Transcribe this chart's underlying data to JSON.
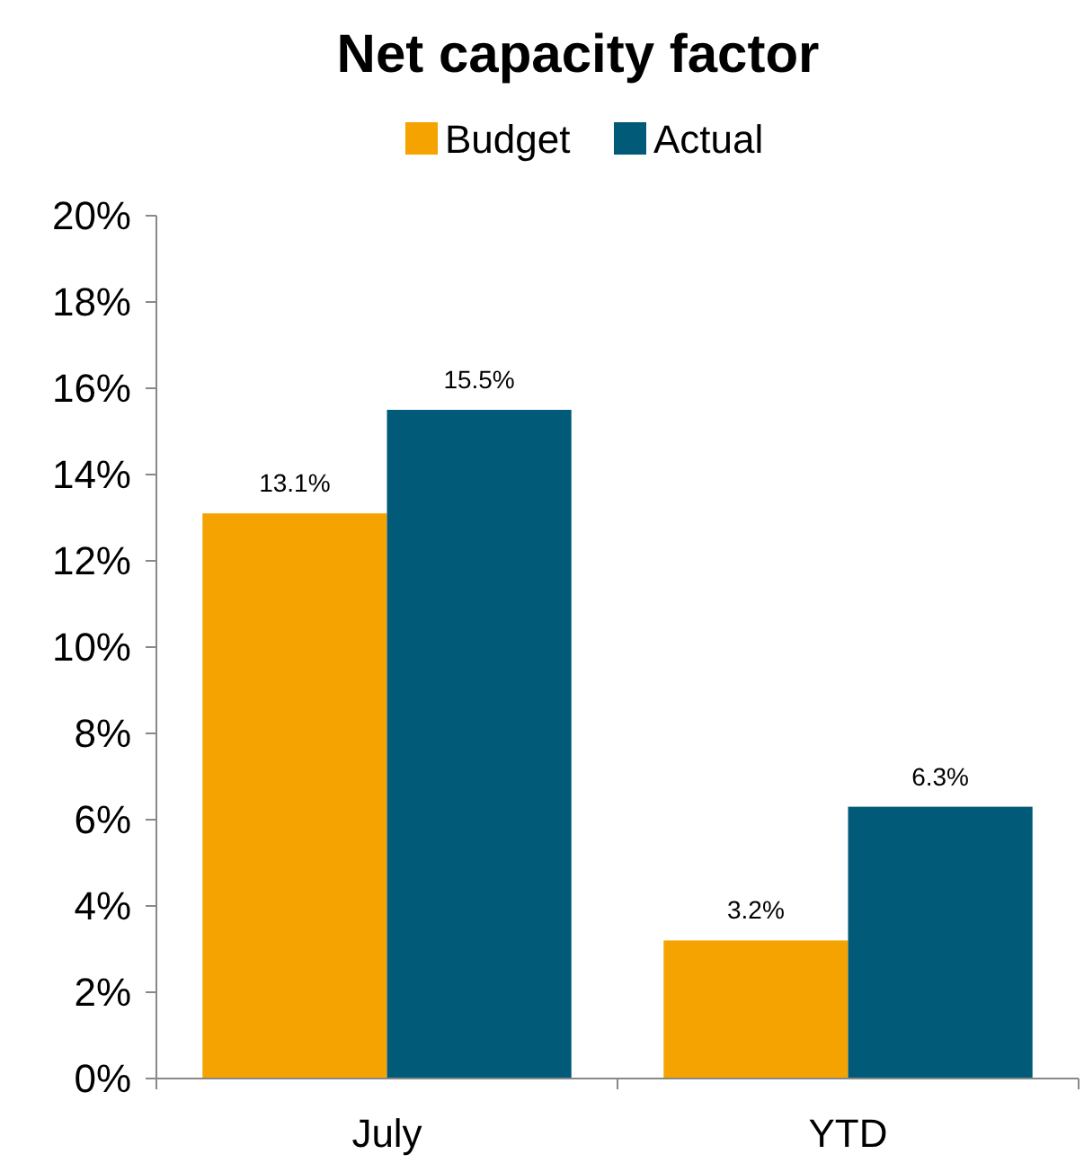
{
  "chart_data": {
    "type": "bar",
    "title": "Net capacity factor",
    "categories": [
      "July",
      "YTD"
    ],
    "series": [
      {
        "name": "Budget",
        "color": "#f5a300",
        "values": [
          13.1,
          3.2
        ],
        "value_labels": [
          "13.1%",
          "3.2%"
        ]
      },
      {
        "name": "Actual",
        "color": "#005a78",
        "values": [
          15.5,
          6.3
        ],
        "value_labels": [
          "15.5%",
          "6.3%"
        ]
      }
    ],
    "ylim": [
      0,
      20
    ],
    "yticks": [
      {
        "value": 0,
        "label": "0%"
      },
      {
        "value": 2,
        "label": "2%"
      },
      {
        "value": 4,
        "label": "4%"
      },
      {
        "value": 6,
        "label": "6%"
      },
      {
        "value": 8,
        "label": "8%"
      },
      {
        "value": 10,
        "label": "10%"
      },
      {
        "value": 12,
        "label": "12%"
      },
      {
        "value": 14,
        "label": "14%"
      },
      {
        "value": 16,
        "label": "16%"
      },
      {
        "value": 18,
        "label": "18%"
      },
      {
        "value": 20,
        "label": "20%"
      }
    ],
    "grid": false,
    "legend": "top"
  }
}
